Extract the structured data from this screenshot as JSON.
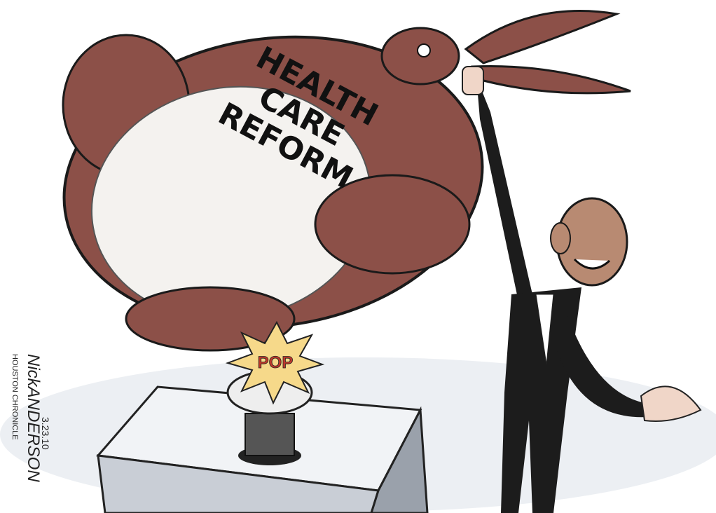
{
  "caption": {
    "lines": [
      "HEALTH",
      "CARE",
      "REFORM"
    ]
  },
  "burst": "POP",
  "signature": {
    "artist": "NickANDERSON",
    "date": "3.23.10",
    "publication": "HOUSTON CHRONICLE"
  }
}
